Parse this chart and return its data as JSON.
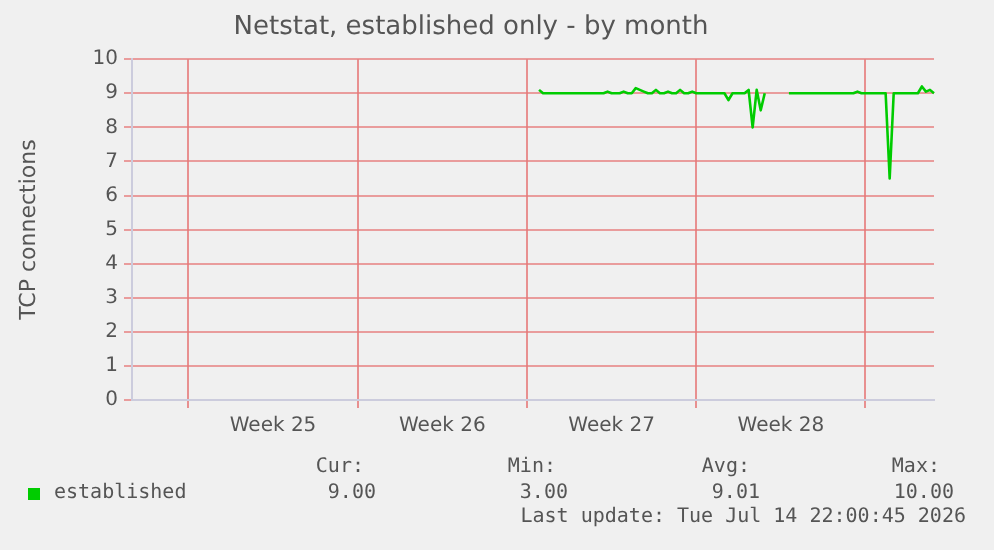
{
  "chart_data": {
    "type": "line",
    "title": "Netstat, established only - by month",
    "ylabel": "TCP connections",
    "categories": [
      null,
      null,
      null,
      null,
      null,
      null,
      null,
      null,
      null,
      null,
      null,
      null,
      null,
      null,
      null,
      null,
      null,
      null,
      null,
      null,
      null,
      null,
      null,
      null,
      null,
      null,
      null,
      null,
      null,
      null,
      null,
      null,
      null,
      null,
      null,
      "Week 25",
      null,
      null,
      null,
      null,
      null,
      null,
      null,
      null,
      null,
      null,
      null,
      null,
      null,
      null,
      null,
      null,
      null,
      null,
      null,
      null,
      null,
      null,
      null,
      null,
      null,
      null,
      null,
      null,
      null,
      null,
      null,
      null,
      null,
      null,
      null,
      null,
      null,
      null,
      null,
      null,
      null,
      "Week 26",
      null,
      null,
      null,
      null,
      null,
      null,
      null,
      null,
      null,
      null,
      null,
      null,
      null,
      null,
      null,
      null,
      null,
      null,
      null,
      null,
      null,
      null,
      null,
      null,
      null,
      null,
      null,
      null,
      null,
      null,
      null,
      null,
      null,
      null,
      null,
      null,
      null,
      null,
      null,
      null,
      null,
      "Week 27",
      null,
      null,
      null,
      null,
      null,
      null,
      null,
      null,
      null,
      null,
      null,
      null,
      null,
      null,
      null,
      null,
      null,
      null,
      null,
      null,
      null,
      null,
      null,
      null,
      null,
      null,
      null,
      null,
      null,
      null,
      null,
      null,
      null,
      null,
      null,
      null,
      null,
      null,
      null,
      null,
      null,
      "Week 28",
      null,
      null,
      null,
      null,
      null,
      null,
      null,
      null,
      null,
      null,
      null,
      null,
      null,
      null,
      null,
      null,
      null,
      null,
      null,
      null,
      null,
      null,
      null,
      null,
      null,
      null,
      null,
      null,
      null,
      null,
      null,
      null,
      null,
      null,
      null,
      null,
      null,
      null
    ],
    "series": [
      {
        "name": "established",
        "color": "#00cc00",
        "values": [
          null,
          null,
          null,
          null,
          null,
          null,
          null,
          null,
          null,
          null,
          null,
          null,
          null,
          null,
          null,
          null,
          null,
          null,
          null,
          null,
          null,
          null,
          null,
          null,
          null,
          null,
          null,
          null,
          null,
          null,
          null,
          null,
          null,
          null,
          null,
          null,
          null,
          null,
          null,
          null,
          null,
          null,
          null,
          null,
          null,
          null,
          null,
          null,
          null,
          null,
          null,
          null,
          null,
          null,
          null,
          null,
          null,
          null,
          null,
          null,
          null,
          null,
          null,
          null,
          null,
          null,
          null,
          null,
          null,
          null,
          null,
          null,
          null,
          null,
          null,
          null,
          null,
          null,
          null,
          null,
          null,
          null,
          null,
          null,
          null,
          null,
          null,
          null,
          null,
          null,
          null,
          null,
          null,
          null,
          null,
          null,
          null,
          null,
          null,
          null,
          null,
          9.1,
          9,
          9,
          9,
          9,
          9,
          9,
          9,
          9,
          9,
          9,
          9,
          9,
          9,
          9,
          9,
          9,
          9.05,
          9,
          9,
          9,
          9.05,
          9,
          9,
          9.15,
          9.1,
          9.05,
          9,
          9,
          9.1,
          9,
          9,
          9.05,
          9,
          9,
          9.1,
          9,
          9,
          9.05,
          9,
          9,
          9,
          9,
          9,
          9,
          9,
          9,
          8.8,
          9,
          9,
          9,
          9,
          9.1,
          8,
          9.1,
          8.5,
          9,
          null,
          null,
          null,
          null,
          null,
          9,
          9,
          9,
          9,
          9,
          9,
          9,
          9,
          9,
          9,
          9,
          9,
          9,
          9,
          9,
          9,
          9,
          9.05,
          9,
          9,
          9,
          9,
          9,
          9,
          9,
          6.5,
          9,
          9,
          9,
          9,
          9,
          9,
          9,
          9.2,
          9.05,
          9.1,
          9
        ]
      }
    ],
    "ylim": [
      0,
      10
    ],
    "yticks": [
      0,
      1,
      2,
      3,
      4,
      5,
      6,
      7,
      8,
      9,
      10
    ],
    "grid": true,
    "legend": "bottom left",
    "marker": "none",
    "line_style": "solid",
    "annotations": [
      "Cur:",
      "9.00",
      "Min:",
      "3.00",
      "Avg:",
      "9.01",
      "Max:",
      "10.00",
      "Last update: Tue Jul 14 22:00:45 2026"
    ]
  }
}
